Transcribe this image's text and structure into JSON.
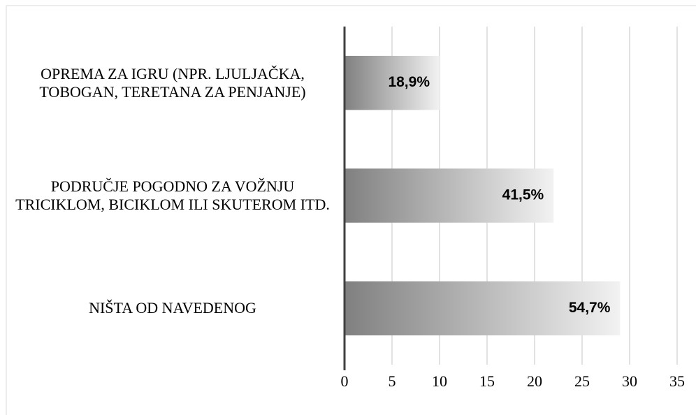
{
  "chart_data": {
    "type": "hbar",
    "categories": [
      "OPREMA ZA IGRU (NPR. LJULJAČKA, TOBOGAN, TERETANA ZA PENJANJE)",
      "PODRUČJE POGODNO ZA VOŽNJU TRICIKLOM, BICIKLOM ILI SKUTEROM ITD.",
      "NIŠTA OD NAVEDENOG"
    ],
    "values": [
      10,
      22,
      29
    ],
    "value_labels": [
      "18,9%",
      "41,5%",
      "54,7%"
    ],
    "xlim": [
      0,
      35
    ],
    "xticks": [
      0,
      5,
      10,
      15,
      20,
      25,
      30,
      35
    ],
    "grid": true,
    "color": [
      "#808080",
      "#f2f2f2"
    ]
  }
}
